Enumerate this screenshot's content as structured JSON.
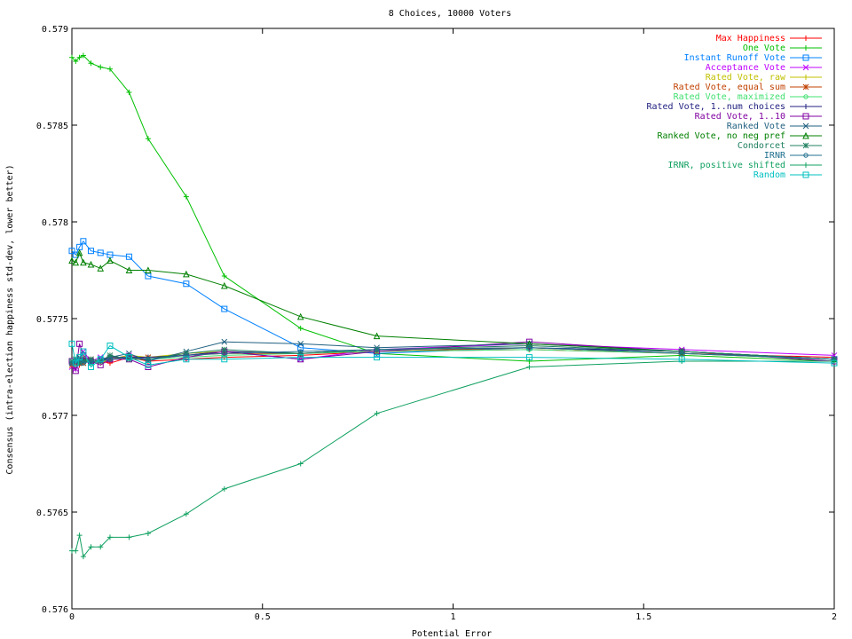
{
  "chart_data": {
    "type": "line",
    "title": "8 Choices, 10000 Voters",
    "xlabel": "Potential Error",
    "ylabel": "Consensus (intra-election happiness std-dev, lower better)",
    "xlim": [
      0,
      2
    ],
    "ylim": [
      0.576,
      0.579
    ],
    "x_ticks": [
      "0",
      "0.5",
      "1",
      "1.5",
      "2"
    ],
    "y_ticks": [
      "0.576",
      "0.5765",
      "0.577",
      "0.5775",
      "0.578",
      "0.5785",
      "0.579"
    ],
    "grid": false,
    "legend_position": "top-right",
    "x": [
      0,
      0.01,
      0.02,
      0.03,
      0.05,
      0.075,
      0.1,
      0.15,
      0.2,
      0.3,
      0.4,
      0.6,
      0.8,
      1.2,
      1.6,
      2
    ],
    "series": [
      {
        "name": "Max Happiness",
        "color": "#ff0000",
        "marker": "plus",
        "values": [
          0.57728,
          0.57727,
          0.57726,
          0.57729,
          0.57727,
          0.57728,
          0.57727,
          0.5773,
          0.57728,
          0.57729,
          0.5773,
          0.57731,
          0.57733,
          0.57734,
          0.57732,
          0.5773
        ]
      },
      {
        "name": "One Vote",
        "color": "#00c000",
        "marker": "plus",
        "values": [
          0.57885,
          0.57883,
          0.57885,
          0.57886,
          0.57882,
          0.5788,
          0.57879,
          0.57867,
          0.57843,
          0.57813,
          0.57772,
          0.57745,
          0.57732,
          0.57728,
          0.57731,
          0.57728
        ]
      },
      {
        "name": "Instant Runoff Vote",
        "color": "#0080ff",
        "marker": "square",
        "values": [
          0.57785,
          0.57783,
          0.57787,
          0.5779,
          0.57785,
          0.57784,
          0.57783,
          0.57782,
          0.57772,
          0.57768,
          0.57755,
          0.57735,
          0.57732,
          0.57735,
          0.57733,
          0.57729
        ]
      },
      {
        "name": "Acceptance Vote",
        "color": "#c000ff",
        "marker": "x",
        "values": [
          0.57725,
          0.57724,
          0.57729,
          0.57733,
          0.57728,
          0.5773,
          0.57729,
          0.57731,
          0.57729,
          0.57731,
          0.57733,
          0.57729,
          0.57734,
          0.57737,
          0.57734,
          0.57731
        ]
      },
      {
        "name": "Rated Vote, raw",
        "color": "#c0c000",
        "marker": "plus",
        "values": [
          0.57727,
          0.57728,
          0.57727,
          0.5773,
          0.57728,
          0.57727,
          0.57729,
          0.57731,
          0.5773,
          0.57732,
          0.57733,
          0.57732,
          0.57734,
          0.57735,
          0.57732,
          0.57729
        ]
      },
      {
        "name": "Rated Vote, equal sum",
        "color": "#c04000",
        "marker": "star",
        "values": [
          0.57726,
          0.57727,
          0.57728,
          0.57727,
          0.57729,
          0.57728,
          0.57729,
          0.5773,
          0.5773,
          0.57731,
          0.57732,
          0.57732,
          0.57733,
          0.57735,
          0.57732,
          0.57729
        ]
      },
      {
        "name": "Rated Vote, maximized",
        "color": "#40e070",
        "marker": "circle",
        "values": [
          0.57727,
          0.57726,
          0.57728,
          0.57729,
          0.57727,
          0.57728,
          0.57729,
          0.5773,
          0.57729,
          0.5773,
          0.57731,
          0.57732,
          0.57733,
          0.57734,
          0.57732,
          0.57729
        ]
      },
      {
        "name": "Rated Vote, 1..num choices",
        "color": "#202080",
        "marker": "plus",
        "values": [
          0.57728,
          0.57728,
          0.57727,
          0.57729,
          0.57728,
          0.57728,
          0.5773,
          0.5773,
          0.5773,
          0.57731,
          0.57733,
          0.57732,
          0.57734,
          0.57735,
          0.57733,
          0.57729
        ]
      },
      {
        "name": "Rated Vote, 1..10",
        "color": "#8000a0",
        "marker": "square",
        "values": [
          0.57728,
          0.57723,
          0.57737,
          0.57731,
          0.57728,
          0.57726,
          0.57729,
          0.57729,
          0.57725,
          0.5773,
          0.57733,
          0.57729,
          0.57733,
          0.57738,
          0.57733,
          0.57728
        ]
      },
      {
        "name": "Ranked Vote",
        "color": "#206080",
        "marker": "x",
        "values": [
          0.57727,
          0.57728,
          0.5773,
          0.57728,
          0.57727,
          0.57729,
          0.5773,
          0.57732,
          0.57728,
          0.57733,
          0.57738,
          0.57737,
          0.57735,
          0.57737,
          0.57733,
          0.57729
        ]
      },
      {
        "name": "Ranked Vote, no neg pref",
        "color": "#008000",
        "marker": "triangle",
        "values": [
          0.5778,
          0.57779,
          0.57784,
          0.57779,
          0.57778,
          0.57776,
          0.5778,
          0.57775,
          0.57775,
          0.57773,
          0.57767,
          0.57751,
          0.57741,
          0.57737,
          0.57733,
          0.57729
        ]
      },
      {
        "name": "Condorcet",
        "color": "#208060",
        "marker": "star",
        "values": [
          0.57728,
          0.57729,
          0.57727,
          0.57728,
          0.57729,
          0.57728,
          0.57731,
          0.57729,
          0.57729,
          0.57732,
          0.57734,
          0.57732,
          0.57734,
          0.57736,
          0.57733,
          0.57729
        ]
      },
      {
        "name": "IRNR",
        "color": "#207090",
        "marker": "circle",
        "values": [
          0.57727,
          0.57728,
          0.57729,
          0.57727,
          0.57728,
          0.57728,
          0.57729,
          0.5773,
          0.57729,
          0.57731,
          0.57732,
          0.57733,
          0.57734,
          0.57735,
          0.57732,
          0.57729
        ]
      },
      {
        "name": "IRNR, positive shifted",
        "color": "#10a060",
        "marker": "plus",
        "values": [
          0.5763,
          0.5763,
          0.57638,
          0.57627,
          0.57632,
          0.57632,
          0.57637,
          0.57637,
          0.57639,
          0.57649,
          0.57662,
          0.57675,
          0.57701,
          0.57725,
          0.57728,
          0.57728
        ]
      },
      {
        "name": "Random",
        "color": "#00c0c0",
        "marker": "square",
        "values": [
          0.57737,
          0.57727,
          0.5773,
          0.57733,
          0.57725,
          0.57729,
          0.57736,
          0.5773,
          0.57726,
          0.57729,
          0.57729,
          0.5773,
          0.5773,
          0.5773,
          0.57729,
          0.57727
        ]
      }
    ]
  }
}
